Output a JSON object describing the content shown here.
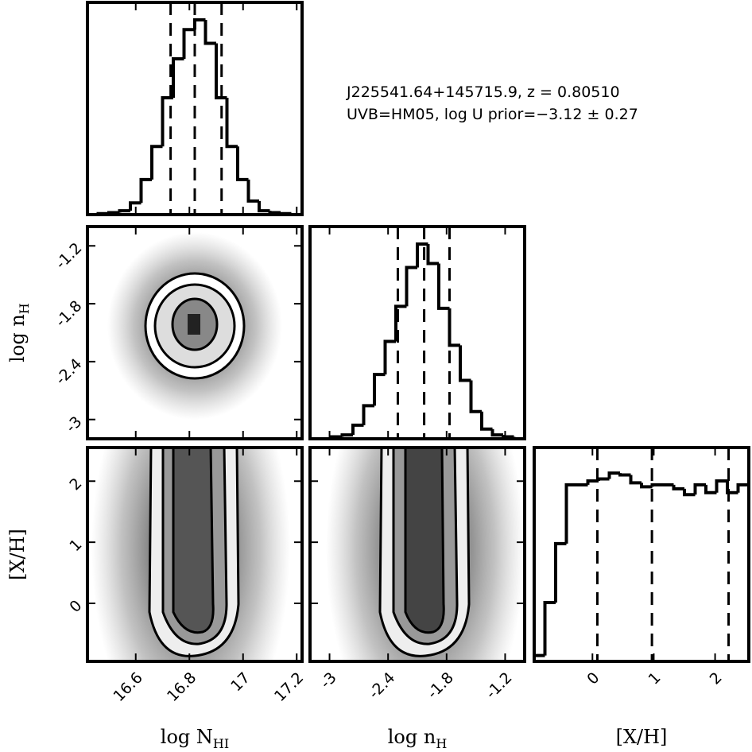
{
  "chart_data": {
    "type": "corner",
    "color": "#000000",
    "annotation": {
      "line1": "J225541.64+145715.9, z = 0.80510",
      "line2": "UVB=HM05, log U prior=−3.12 ± 0.27"
    },
    "params": [
      {
        "label": {
          "text": "log N",
          "sub": "HI"
        },
        "lim": [
          16.42,
          17.22
        ],
        "ticks": [
          16.6,
          16.8,
          17.0,
          17.2
        ],
        "hist": {
          "bins": [
            16.42,
            16.46,
            16.5,
            16.54,
            16.58,
            16.62,
            16.66,
            16.7,
            16.74,
            16.78,
            16.82,
            16.86,
            16.9,
            16.94,
            16.98,
            17.02,
            17.06,
            17.1,
            17.14,
            17.18,
            17.22
          ],
          "values": [
            0,
            0.005,
            0.01,
            0.02,
            0.06,
            0.18,
            0.35,
            0.6,
            0.8,
            0.95,
            1.0,
            0.88,
            0.6,
            0.35,
            0.18,
            0.07,
            0.02,
            0.01,
            0.005,
            0
          ],
          "ylim": [
            0,
            1.09
          ]
        },
        "quantiles": [
          16.73,
          16.82,
          16.92
        ]
      },
      {
        "label": {
          "text": "log n",
          "sub": "H"
        },
        "lim": [
          -3.2,
          -1.0
        ],
        "ticks": [
          -3.0,
          -2.4,
          -1.8,
          -1.2
        ],
        "hist": {
          "bins": [
            -3.2,
            -3.09,
            -2.98,
            -2.87,
            -2.76,
            -2.65,
            -2.54,
            -2.43,
            -2.32,
            -2.21,
            -2.1,
            -1.99,
            -1.88,
            -1.77,
            -1.66,
            -1.55,
            -1.44,
            -1.33,
            -1.22,
            -1.11,
            -1.0
          ],
          "values": [
            0,
            0,
            0.01,
            0.02,
            0.07,
            0.17,
            0.33,
            0.5,
            0.68,
            0.88,
            1.0,
            0.9,
            0.67,
            0.48,
            0.3,
            0.14,
            0.05,
            0.02,
            0.01,
            0
          ],
          "ylim": [
            0,
            1.09
          ]
        },
        "quantiles": [
          -2.3,
          -2.03,
          -1.77
        ]
      },
      {
        "label": {
          "text": "[X/H]",
          "sub": ""
        },
        "lim": [
          -0.95,
          2.55
        ],
        "ticks": [
          0,
          1,
          2
        ],
        "hist": {
          "bins": [
            -0.95,
            -0.775,
            -0.6,
            -0.425,
            -0.25,
            -0.075,
            0.1,
            0.275,
            0.45,
            0.625,
            0.8,
            0.975,
            1.15,
            1.325,
            1.5,
            1.675,
            1.85,
            2.025,
            2.2,
            2.375,
            2.55
          ],
          "values": [
            0.03,
            0.3,
            0.6,
            0.9,
            0.9,
            0.92,
            0.93,
            0.96,
            0.95,
            0.91,
            0.89,
            0.9,
            0.9,
            0.88,
            0.85,
            0.9,
            0.86,
            0.92,
            0.86,
            0.9
          ],
          "ylim": [
            0,
            1.09
          ]
        },
        "quantiles": [
          0.08,
          0.97,
          2.22
        ]
      }
    ]
  }
}
